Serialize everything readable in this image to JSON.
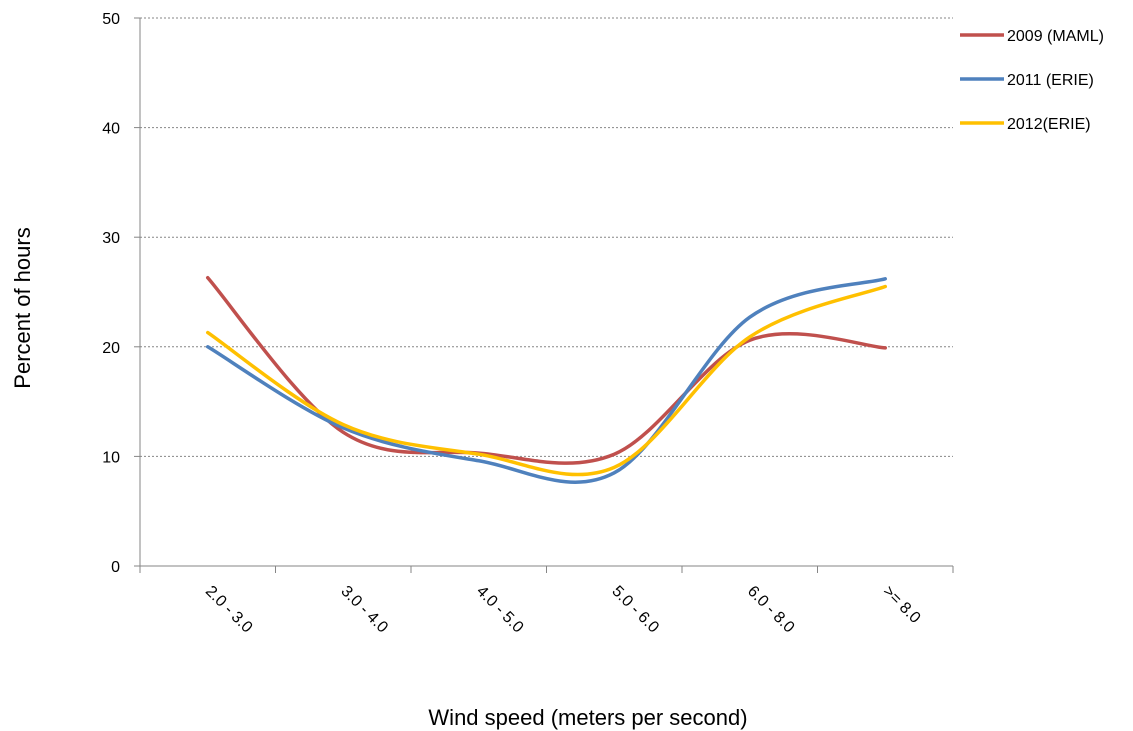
{
  "chart_data": {
    "type": "line",
    "smooth": true,
    "categories": [
      "2.0 - 3.0",
      "3.0 - 4.0",
      "4.0 - 5.0",
      "5.0 - 6.0",
      "6.0 - 8.0",
      ">= 8.0"
    ],
    "series": [
      {
        "name": "2009 (MAML)",
        "color": "#C0504D",
        "values": [
          26.3,
          12.2,
          10.3,
          10.2,
          20.6,
          19.9
        ]
      },
      {
        "name": "2011 (ERIE)",
        "color": "#4F81BD",
        "values": [
          20.0,
          12.6,
          9.6,
          8.5,
          22.7,
          26.2
        ]
      },
      {
        "name": "2012(ERIE)",
        "color": "#FFC000",
        "values": [
          21.3,
          12.9,
          10.2,
          9.0,
          20.9,
          25.5
        ]
      }
    ],
    "ylim": [
      0,
      50
    ],
    "yticks": [
      0,
      10,
      20,
      30,
      40,
      50
    ],
    "xlabel": "Wind speed (meters per second)",
    "ylabel": "Percent of hours",
    "grid": "horizontal dashed",
    "legend": "right"
  }
}
